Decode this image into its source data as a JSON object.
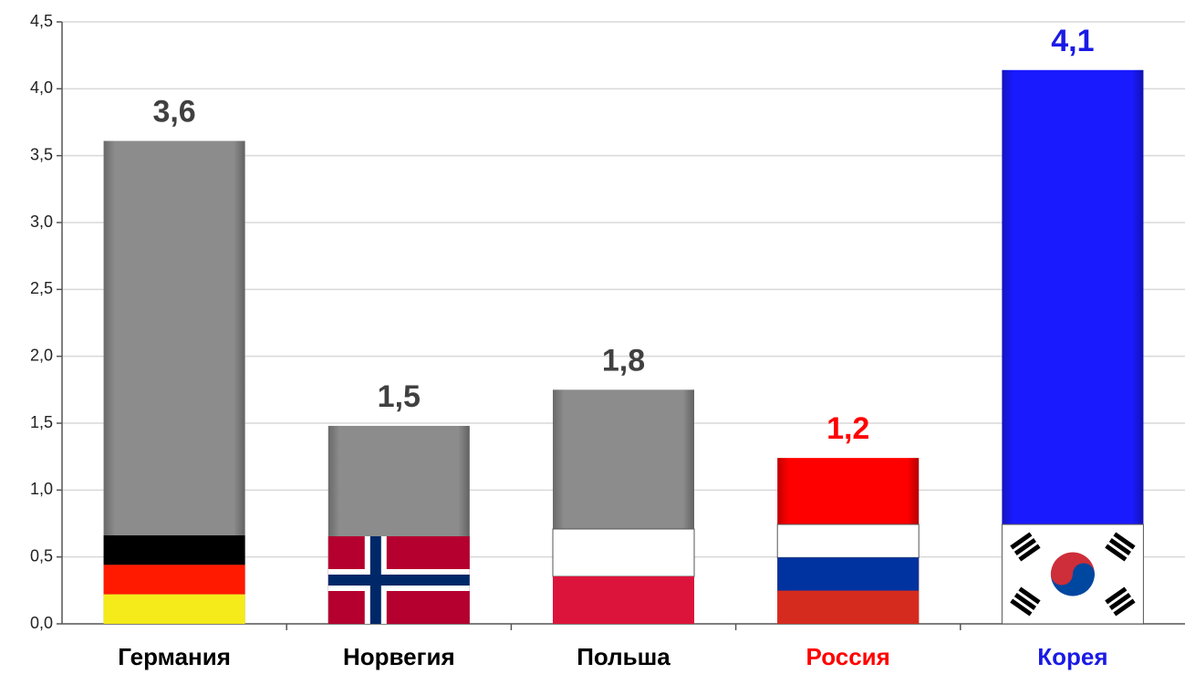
{
  "chart_data": {
    "type": "bar",
    "categories": [
      "Германия",
      "Норвегия",
      "Польша",
      "Россия",
      "Корея"
    ],
    "values": [
      3.61,
      1.48,
      1.75,
      1.24,
      4.14
    ],
    "value_labels": [
      "3,6",
      "1,5",
      "1,8",
      "1,2",
      "4,1"
    ],
    "colors": [
      "#8c8c8c",
      "#8c8c8c",
      "#8c8c8c",
      "#ff0000",
      "#1a1aff"
    ],
    "label_colors": [
      "#000000",
      "#000000",
      "#000000",
      "#ff0000",
      "#1a1ae6"
    ],
    "value_label_colors": [
      "#404040",
      "#404040",
      "#404040",
      "#ff0000",
      "#1a1ae6"
    ],
    "ylim": [
      0,
      4.5
    ],
    "yticks": [
      {
        "value": 0,
        "label": "0,0"
      },
      {
        "value": 0.5,
        "label": "0,5"
      },
      {
        "value": 1,
        "label": "1,0"
      },
      {
        "value": 1.5,
        "label": "1,5"
      },
      {
        "value": 2,
        "label": "2,0"
      },
      {
        "value": 2.5,
        "label": "2,5"
      },
      {
        "value": 3,
        "label": "3,0"
      },
      {
        "value": 3.5,
        "label": "3,5"
      },
      {
        "value": 4,
        "label": "4,0"
      },
      {
        "value": 4.5,
        "label": "4,5"
      }
    ],
    "grid": true
  }
}
